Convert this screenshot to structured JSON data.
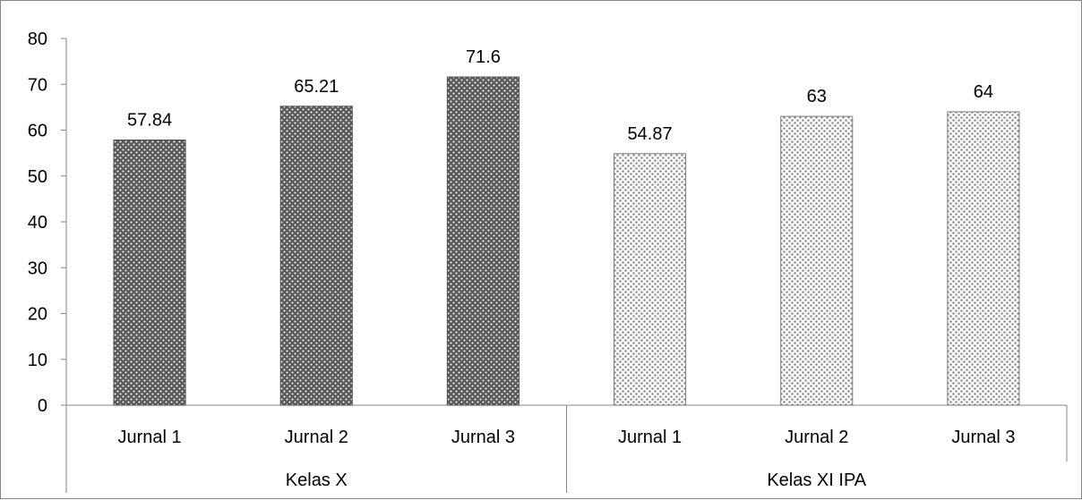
{
  "chart_data": {
    "type": "bar",
    "groups": [
      {
        "name": "Kelas X",
        "categories": [
          "Jurnal 1",
          "Jurnal 2",
          "Jurnal 3"
        ],
        "values": [
          57.84,
          65.21,
          71.6
        ],
        "data_labels": [
          "57.84",
          "65.21",
          "71.6"
        ]
      },
      {
        "name": "Kelas XI IPA",
        "categories": [
          "Jurnal 1",
          "Jurnal 2",
          "Jurnal 3"
        ],
        "values": [
          54.87,
          63,
          64
        ],
        "data_labels": [
          "54.87",
          "63",
          "64"
        ]
      }
    ],
    "ylim": [
      0,
      80
    ],
    "yticks": [
      "0",
      "10",
      "20",
      "30",
      "40",
      "50",
      "60",
      "70",
      "80"
    ],
    "grid": false,
    "legend": "none",
    "colors": {
      "kelas_x": "#5a5a5a",
      "kelas_xi_ipa": "#8c8c8c",
      "axis": "#868686"
    }
  }
}
